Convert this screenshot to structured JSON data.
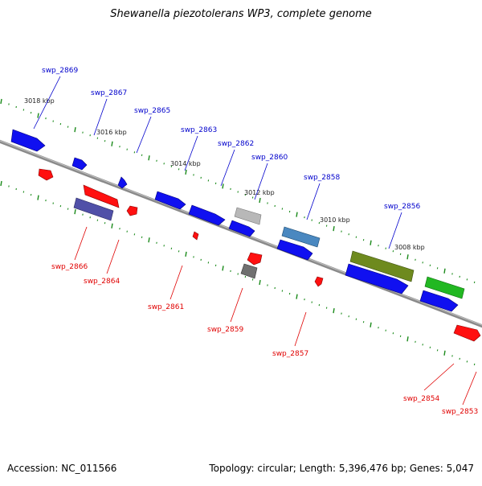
{
  "header": {
    "title": "Shewanella piezotolerans WP3, complete genome"
  },
  "footer": {
    "accession": "Accession: NC_011566",
    "topology": "Topology: circular; Length: 5,396,476 bp; Genes: 5,047"
  },
  "colors": {
    "backbone": "#8a8a8a",
    "tick": "#1a8a1a",
    "forward_label": "#0000cc",
    "reverse_label": "#e00000",
    "gene_blue": "#1010f0",
    "gene_red": "#ff1010",
    "gene_purple": "#5050a8",
    "gene_gray": "#b8b8b8",
    "gene_darkgray": "#707070",
    "gene_steelblue": "#4a88c0",
    "gene_olive": "#6e8a1e",
    "gene_green": "#22b822"
  },
  "scale_labels": [
    "3018 kbp",
    "3016 kbp",
    "3014 kbp",
    "3012 kbp",
    "3010 kbp",
    "3008 kbp"
  ],
  "forward_gene_labels": [
    "swp_2869",
    "swp_2867",
    "swp_2865",
    "swp_2863",
    "swp_2862",
    "swp_2860",
    "swp_2858",
    "swp_2856"
  ],
  "reverse_gene_labels": [
    "swp_2866",
    "swp_2864",
    "swp_2861",
    "swp_2859",
    "swp_2857",
    "swp_2854",
    "swp_2853"
  ]
}
